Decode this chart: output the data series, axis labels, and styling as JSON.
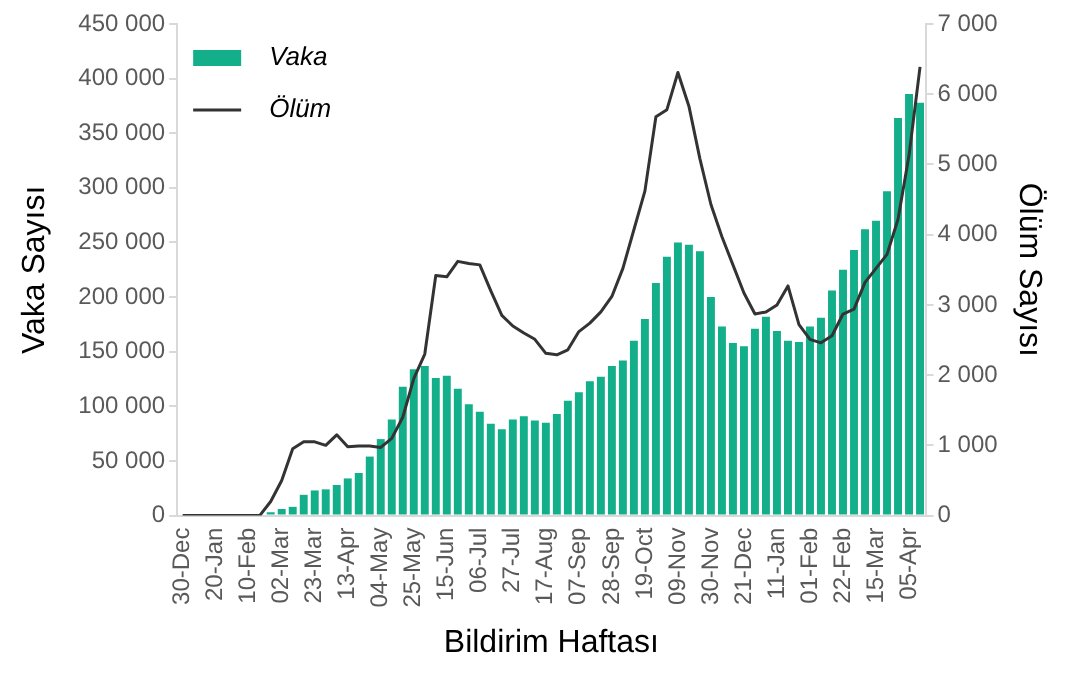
{
  "chart_data": {
    "type": "bar",
    "xlabel": "Bildirim Haftası",
    "ylabel": "Vaka Sayısı",
    "y2label": "Ölüm Sayısı",
    "categories": [
      "30-Dec",
      null,
      null,
      "20-Jan",
      null,
      null,
      "10-Feb",
      null,
      null,
      "02-Mar",
      null,
      null,
      "23-Mar",
      null,
      null,
      "13-Apr",
      null,
      null,
      "04-May",
      null,
      null,
      "25-May",
      null,
      null,
      "15-Jun",
      null,
      null,
      "06-Jul",
      null,
      null,
      "27-Jul",
      null,
      null,
      "17-Aug",
      null,
      null,
      "07-Sep",
      null,
      null,
      "28-Sep",
      null,
      null,
      "19-Oct",
      null,
      null,
      "09-Nov",
      null,
      null,
      "30-Nov",
      null,
      null,
      "21-Dec",
      null,
      null,
      "11-Jan",
      null,
      null,
      "01-Feb",
      null,
      null,
      "22-Feb",
      null,
      null,
      "15-Mar",
      null,
      null,
      "05-Apr",
      null
    ],
    "series": [
      {
        "name": "Vaka",
        "color": "#13ae8a",
        "values": [
          0,
          0,
          0,
          0,
          0,
          0,
          0,
          0,
          3000,
          6000,
          8000,
          19000,
          23000,
          24000,
          28000,
          34000,
          39000,
          54000,
          70000,
          88000,
          118000,
          134000,
          137000,
          126000,
          128000,
          116000,
          102000,
          95000,
          84000,
          79000,
          88000,
          91000,
          87000,
          85000,
          93000,
          105000,
          113000,
          123000,
          127000,
          137000,
          142000,
          160000,
          180000,
          213000,
          237000,
          250000,
          248000,
          242000,
          200000,
          173000,
          158000,
          155000,
          171000,
          182000,
          169000,
          160000,
          159000,
          173000,
          181000,
          206000,
          225000,
          243000,
          262000,
          270000,
          297000,
          364000,
          386000,
          378000
        ]
      },
      {
        "name": "Ölüm",
        "type": "line",
        "axis": "y2",
        "color": "#333333",
        "values": [
          0,
          0,
          0,
          0,
          0,
          0,
          0,
          0,
          200,
          500,
          950,
          1050,
          1050,
          1000,
          1150,
          980,
          990,
          990,
          970,
          1100,
          1400,
          1950,
          2300,
          3420,
          3400,
          3620,
          3590,
          3570,
          3200,
          2850,
          2700,
          2600,
          2510,
          2310,
          2290,
          2360,
          2620,
          2740,
          2900,
          3120,
          3520,
          4070,
          4620,
          5680,
          5780,
          6310,
          5830,
          5080,
          4430,
          3970,
          3570,
          3170,
          2870,
          2900,
          3000,
          3270,
          2720,
          2510,
          2460,
          2560,
          2870,
          2940,
          3320,
          3520,
          3720,
          4220,
          5130,
          6390
        ]
      }
    ],
    "ylim": [
      0,
      450000
    ],
    "yticks": [
      {
        "value": 0,
        "label": "0"
      },
      {
        "value": 50000,
        "label": "50 000"
      },
      {
        "value": 100000,
        "label": "100 000"
      },
      {
        "value": 150000,
        "label": "150 000"
      },
      {
        "value": 200000,
        "label": "200 000"
      },
      {
        "value": 250000,
        "label": "250 000"
      },
      {
        "value": 300000,
        "label": "300 000"
      },
      {
        "value": 350000,
        "label": "350 000"
      },
      {
        "value": 400000,
        "label": "400 000"
      },
      {
        "value": 450000,
        "label": "450 000"
      }
    ],
    "y2lim": [
      0,
      7000
    ],
    "y2ticks": [
      {
        "value": 0,
        "label": "0"
      },
      {
        "value": 1000,
        "label": "1 000"
      },
      {
        "value": 2000,
        "label": "2 000"
      },
      {
        "value": 3000,
        "label": "3 000"
      },
      {
        "value": 4000,
        "label": "4 000"
      },
      {
        "value": 5000,
        "label": "5 000"
      },
      {
        "value": 6000,
        "label": "6 000"
      },
      {
        "value": 7000,
        "label": "7 000"
      }
    ],
    "grid": false,
    "legend": "top left",
    "marker": "none",
    "line_style": "solid"
  }
}
